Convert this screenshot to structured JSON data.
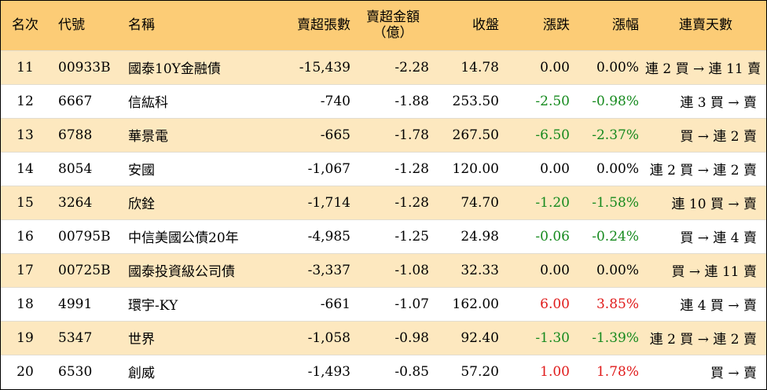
{
  "colors": {
    "header_bg": "#fccc76",
    "stripe_bg": "#fde8bf",
    "up": "#e01b1b",
    "down": "#168a1e"
  },
  "headers": {
    "rank": "名次",
    "code": "代號",
    "name": "名稱",
    "net_sell_vol": "賣超張數",
    "net_sell_amt_line1": "賣超金額",
    "net_sell_amt_line2": "（億）",
    "close": "收盤",
    "change": "漲跌",
    "pct": "漲幅",
    "streak": "連賣天數"
  },
  "rows": [
    {
      "rank": "11",
      "code": "00933B",
      "name": "國泰10Y金融債",
      "vol": "-15,439",
      "amt": "-2.28",
      "close": "14.78",
      "chg": "0.00",
      "pct": "0.00%",
      "dir": "flat",
      "streak": "連 2 買 → 連 11 賣"
    },
    {
      "rank": "12",
      "code": "6667",
      "name": "信紘科",
      "vol": "-740",
      "amt": "-1.88",
      "close": "253.50",
      "chg": "-2.50",
      "pct": "-0.98%",
      "dir": "down",
      "streak": "連 3 買 → 賣"
    },
    {
      "rank": "13",
      "code": "6788",
      "name": "華景電",
      "vol": "-665",
      "amt": "-1.78",
      "close": "267.50",
      "chg": "-6.50",
      "pct": "-2.37%",
      "dir": "down",
      "streak": "買 → 連 2 賣"
    },
    {
      "rank": "14",
      "code": "8054",
      "name": "安國",
      "vol": "-1,067",
      "amt": "-1.28",
      "close": "120.00",
      "chg": "0.00",
      "pct": "0.00%",
      "dir": "flat",
      "streak": "連 2 買 → 連 2 賣"
    },
    {
      "rank": "15",
      "code": "3264",
      "name": "欣銓",
      "vol": "-1,714",
      "amt": "-1.28",
      "close": "74.70",
      "chg": "-1.20",
      "pct": "-1.58%",
      "dir": "down",
      "streak": "連 10 買 → 賣"
    },
    {
      "rank": "16",
      "code": "00795B",
      "name": "中信美國公債20年",
      "vol": "-4,985",
      "amt": "-1.25",
      "close": "24.98",
      "chg": "-0.06",
      "pct": "-0.24%",
      "dir": "down",
      "streak": "買 → 連 4 賣"
    },
    {
      "rank": "17",
      "code": "00725B",
      "name": "國泰投資級公司債",
      "vol": "-3,337",
      "amt": "-1.08",
      "close": "32.33",
      "chg": "0.00",
      "pct": "0.00%",
      "dir": "flat",
      "streak": "買 → 連 11 賣"
    },
    {
      "rank": "18",
      "code": "4991",
      "name": "環宇-KY",
      "vol": "-661",
      "amt": "-1.07",
      "close": "162.00",
      "chg": "6.00",
      "pct": "3.85%",
      "dir": "up",
      "streak": "連 4 買 → 賣"
    },
    {
      "rank": "19",
      "code": "5347",
      "name": "世界",
      "vol": "-1,058",
      "amt": "-0.98",
      "close": "92.40",
      "chg": "-1.30",
      "pct": "-1.39%",
      "dir": "down",
      "streak": "連 2 買 → 連 2 賣"
    },
    {
      "rank": "20",
      "code": "6530",
      "name": "創威",
      "vol": "-1,493",
      "amt": "-0.85",
      "close": "57.20",
      "chg": "1.00",
      "pct": "1.78%",
      "dir": "up",
      "streak": "買 → 賣"
    }
  ]
}
